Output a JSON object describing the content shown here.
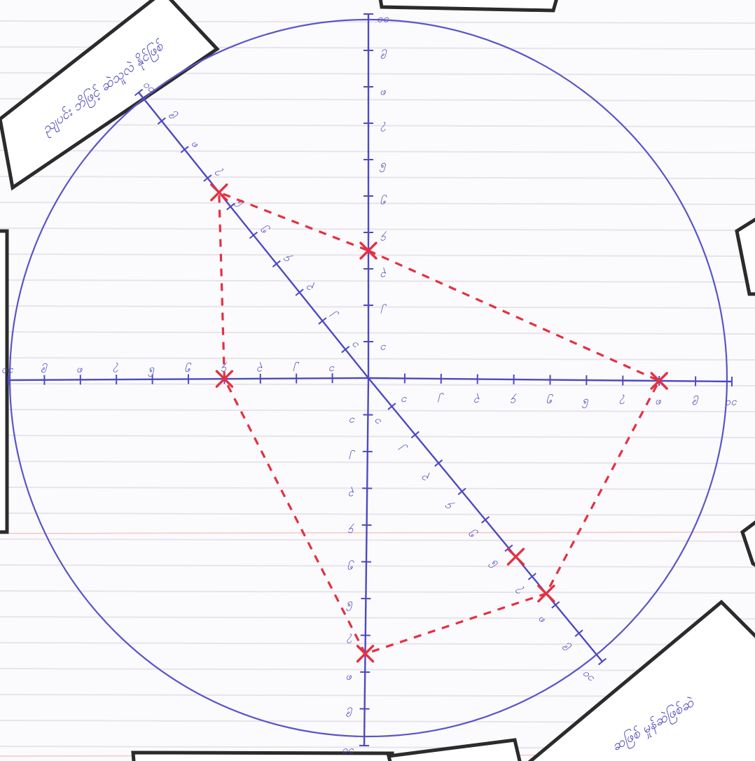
{
  "chart_data": {
    "type": "radar",
    "axes": [
      {
        "key": "north",
        "scale_max": 10,
        "ticks": [
          "၁",
          "၂",
          "၃",
          "၄",
          "၅",
          "၆",
          "၇",
          "၈",
          "၉",
          "၁၀"
        ]
      },
      {
        "key": "east",
        "scale_max": 10,
        "ticks": [
          "၁",
          "၂",
          "၃",
          "၄",
          "၅",
          "၆",
          "၇",
          "၈",
          "၉",
          "၁၀"
        ]
      },
      {
        "key": "southeast",
        "scale_max": 10,
        "ticks": [
          "၁",
          "၂",
          "၃",
          "၄",
          "၅",
          "၆",
          "၇",
          "၈",
          "၉",
          "၁၀"
        ]
      },
      {
        "key": "south",
        "scale_max": 10,
        "ticks": [
          "၁",
          "၂",
          "၃",
          "၄",
          "၅",
          "၆",
          "၇",
          "၈",
          "၉",
          "၁၀"
        ]
      },
      {
        "key": "west",
        "scale_max": 10,
        "ticks": [
          "၁",
          "၂",
          "၃",
          "၄",
          "၅",
          "၆",
          "၇",
          "၈",
          "၉",
          "၁၀"
        ]
      },
      {
        "key": "northwest",
        "scale_max": 10,
        "ticks": [
          "၁",
          "၂",
          "၃",
          "၄",
          "၅",
          "၆",
          "၇",
          "၈",
          "၉",
          "၁၀"
        ]
      }
    ],
    "series": [
      {
        "values": {
          "north": 3.5,
          "east": 8,
          "southeast": 7.6,
          "south": 7.5,
          "west": 4,
          "northwest": 6.5
        }
      },
      {
        "values": {
          "southeast": 6.3
        }
      }
    ],
    "colors": {
      "series": "#e53040",
      "axes": "#4d49c4",
      "frame": "#2b2b2b"
    }
  },
  "boxes": {
    "top_left": "ညျပင်း ဘိဖြင့် ဆဲသူလဲ နိုင်ဖြစ်",
    "bottom_right": "ဆဖြစ် မှုန်ဆဲဖြစ်ဆဲ"
  }
}
